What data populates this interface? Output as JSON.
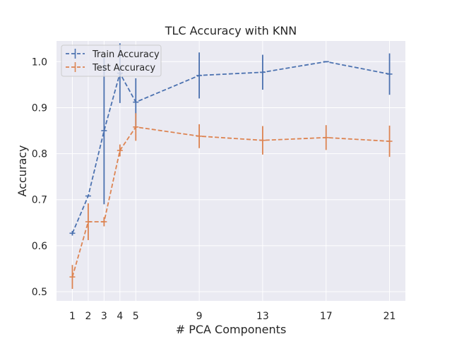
{
  "chart_data": {
    "type": "line",
    "title": "TLC Accuracy with KNN",
    "xlabel": "# PCA Components",
    "ylabel": "Accuracy",
    "x": [
      1,
      2,
      3,
      4,
      5,
      9,
      13,
      17,
      21
    ],
    "xticks": [
      "1",
      "2",
      "3",
      "4",
      "5",
      "9",
      "13",
      "17",
      "21"
    ],
    "yticks": [
      "0.5",
      "0.6",
      "0.7",
      "0.8",
      "0.9",
      "1.0"
    ],
    "xlim": [
      0.0,
      22.0
    ],
    "ylim": [
      0.48,
      1.045
    ],
    "grid": true,
    "legend_position": "upper-left",
    "background_color": "#eaeaf2",
    "series": [
      {
        "name": "Train Accuracy",
        "color": "#4c72b0",
        "values": [
          0.627,
          0.708,
          0.85,
          0.975,
          0.912,
          0.97,
          0.977,
          1.0,
          0.973
        ],
        "errors": [
          0.005,
          0.0,
          0.16,
          0.065,
          0.052,
          0.05,
          0.038,
          0.0,
          0.045
        ]
      },
      {
        "name": "Test Accuracy",
        "color": "#dd8452",
        "values": [
          0.532,
          0.652,
          0.652,
          0.807,
          0.858,
          0.838,
          0.829,
          0.835,
          0.827
        ],
        "errors": [
          0.026,
          0.04,
          0.01,
          0.013,
          0.03,
          0.026,
          0.031,
          0.027,
          0.034
        ]
      }
    ]
  }
}
